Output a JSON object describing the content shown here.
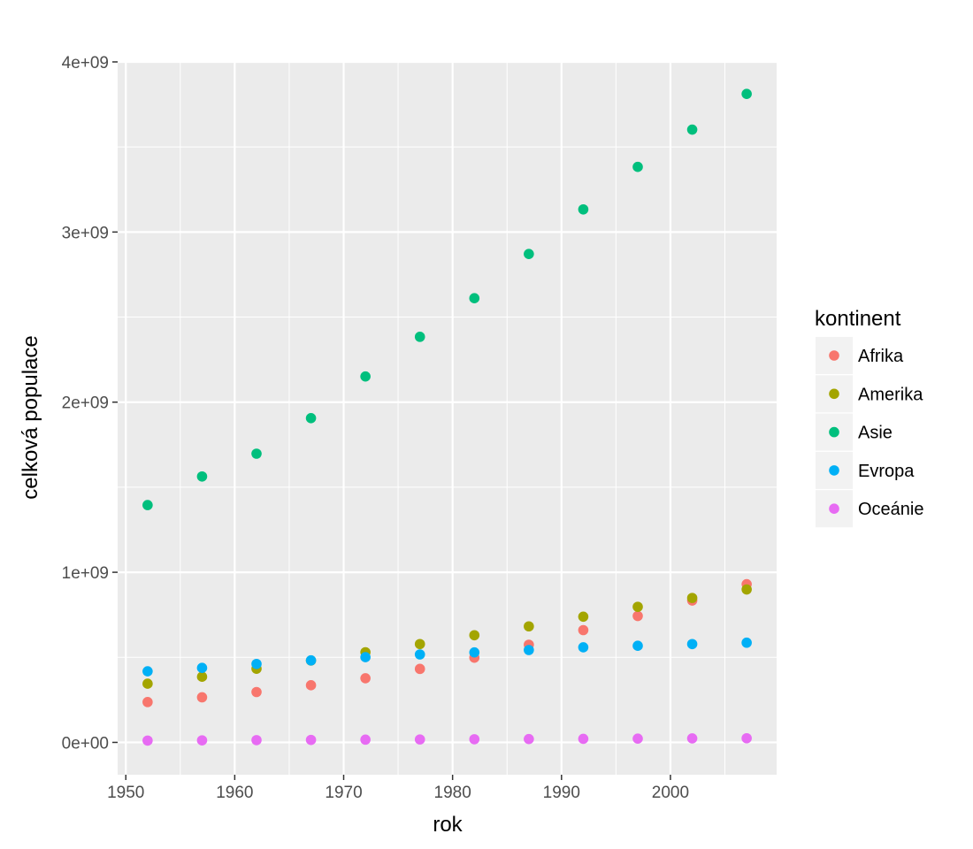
{
  "chart_data": {
    "type": "scatter",
    "title": "",
    "xlabel": "rok",
    "ylabel": "celková populace",
    "xlim": [
      1949.25,
      2009.75
    ],
    "ylim": [
      -190000000,
      4000000000
    ],
    "x_ticks": [
      1950,
      1960,
      1970,
      1980,
      1990,
      2000
    ],
    "y_ticks": [
      0,
      1000000000,
      2000000000,
      3000000000,
      4000000000
    ],
    "y_tick_labels": [
      "0e+00",
      "1e+09",
      "2e+09",
      "3e+09",
      "4e+09"
    ],
    "grid": true,
    "legend_title": "kontinent",
    "legend_position": "right",
    "x": [
      1952,
      1957,
      1962,
      1967,
      1972,
      1977,
      1982,
      1987,
      1992,
      1997,
      2002,
      2007
    ],
    "series": [
      {
        "name": "Afrika",
        "color": "#F8766D",
        "values": [
          237000000,
          265000000,
          296000000,
          336000000,
          377000000,
          432000000,
          498000000,
          574000000,
          660000000,
          743000000,
          834000000,
          930000000
        ]
      },
      {
        "name": "Amerika",
        "color": "#A3A500",
        "values": [
          345000000,
          386000000,
          433000000,
          481000000,
          530000000,
          578000000,
          630000000,
          682000000,
          739000000,
          797000000,
          849000000,
          899000000
        ]
      },
      {
        "name": "Asie",
        "color": "#00BF7D",
        "values": [
          1395000000,
          1563000000,
          1697000000,
          1906000000,
          2151000000,
          2384000000,
          2611000000,
          2871000000,
          3133000000,
          3383000000,
          3602000000,
          3812000000
        ]
      },
      {
        "name": "Evropa",
        "color": "#00B0F6",
        "values": [
          418000000,
          438000000,
          461000000,
          482000000,
          501000000,
          517000000,
          529000000,
          543000000,
          559000000,
          568000000,
          578000000,
          586000000
        ]
      },
      {
        "name": "Oceánie",
        "color": "#E76BF3",
        "values": [
          10700000,
          11900000,
          13300000,
          14600000,
          16100000,
          17300000,
          18400000,
          19600000,
          20900000,
          22200000,
          23500000,
          24500000
        ]
      }
    ]
  }
}
